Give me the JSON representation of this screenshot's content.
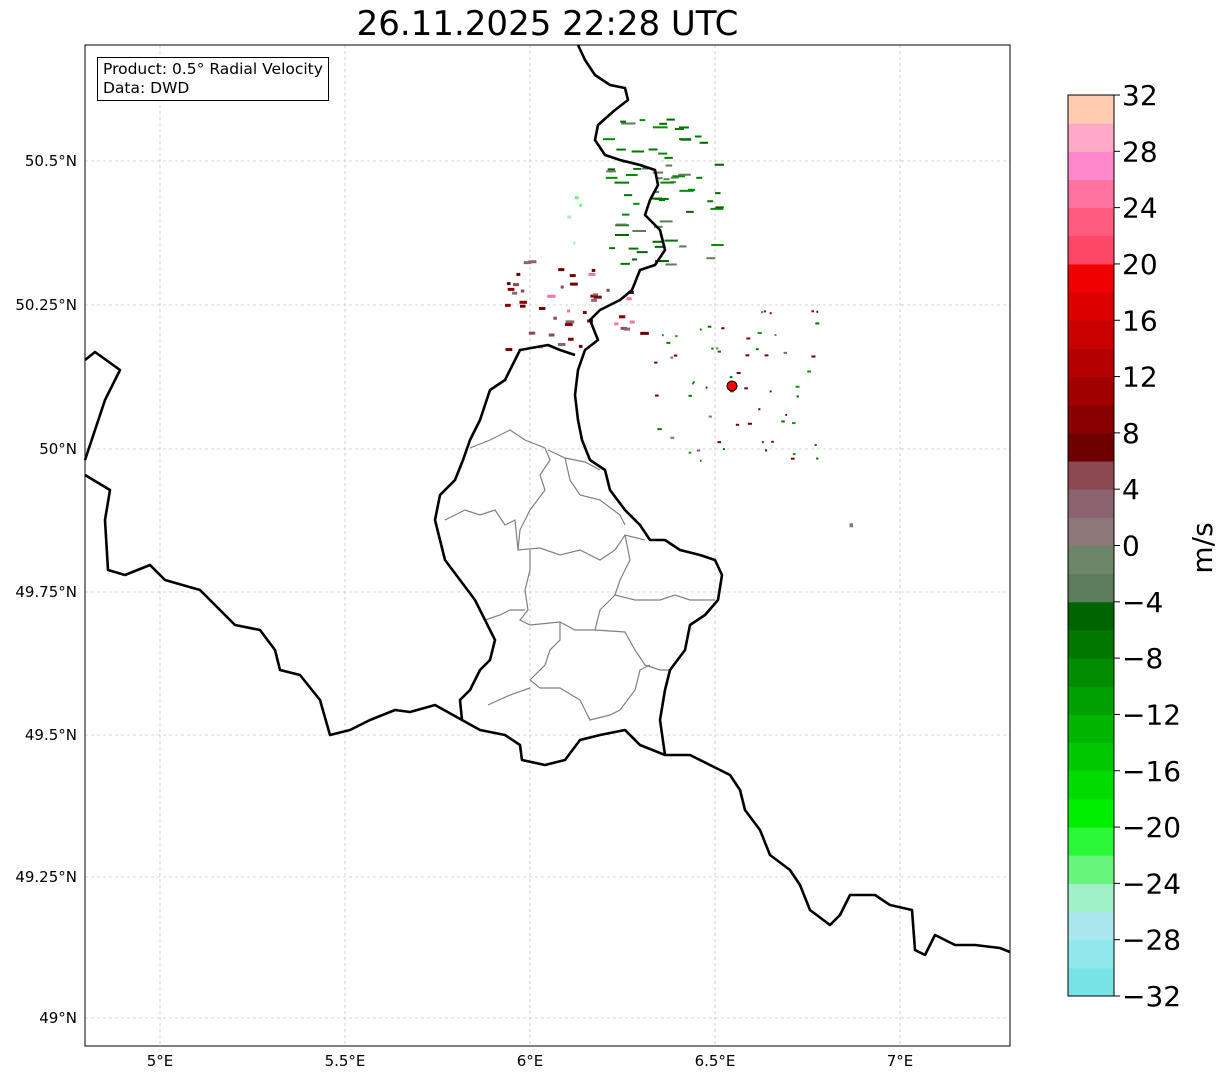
{
  "title": "26.11.2025 22:28 UTC",
  "legend": {
    "product": "Product: 0.5° Radial Velocity",
    "data": "Data: DWD"
  },
  "axes": {
    "lon_ticks": [
      "5°E",
      "5.5°E",
      "6°E",
      "6.5°E",
      "7°E"
    ],
    "lat_ticks": [
      "50.5°N",
      "50.25°N",
      "50°N",
      "49.75°N",
      "49.5°N",
      "49.25°N",
      "49°N"
    ]
  },
  "colorbar": {
    "label": "m/s",
    "min": -32,
    "max": 32,
    "step": 2,
    "tick_labels": [
      "32",
      "28",
      "24",
      "20",
      "16",
      "12",
      "8",
      "4",
      "0",
      "−4",
      "−8",
      "−12",
      "−16",
      "−20",
      "−24",
      "−28",
      "−32"
    ],
    "colors_bottom_to_top": [
      "#78e4e8",
      "#90e8ec",
      "#a8e8ee",
      "#a0f0c8",
      "#66f47a",
      "#2cf83a",
      "#00f000",
      "#00dc00",
      "#00c800",
      "#00b400",
      "#00a000",
      "#008c00",
      "#007800",
      "#006400",
      "#5c7c5c",
      "#6c8468",
      "#8c7878",
      "#8c6470",
      "#8c4a50",
      "#6e0000",
      "#8a0000",
      "#a00000",
      "#b40000",
      "#c80000",
      "#dc0000",
      "#f00000",
      "#ff4868",
      "#ff5a80",
      "#ff74a0",
      "#ff88cc",
      "#ffa8c8",
      "#ffccb0"
    ]
  },
  "radar_site_color": "#ff0000"
}
